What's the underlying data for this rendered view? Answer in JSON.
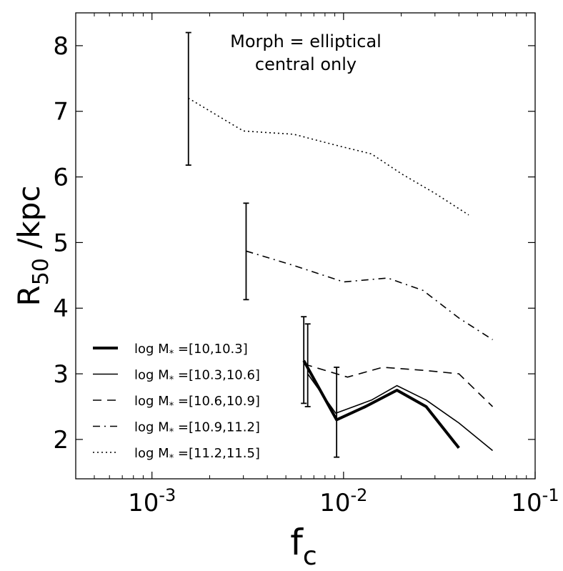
{
  "chart_data": {
    "type": "line",
    "xscale": "log",
    "xlim": [
      0.0004,
      0.1
    ],
    "ylim": [
      1.4,
      8.5
    ],
    "x_ticks": [
      {
        "value": 0.001,
        "base": "10",
        "exp": "-3"
      },
      {
        "value": 0.01,
        "base": "10",
        "exp": "-2"
      },
      {
        "value": 0.1,
        "base": "10",
        "exp": "-1"
      }
    ],
    "y_ticks": [
      2,
      3,
      4,
      5,
      6,
      7,
      8
    ],
    "y_tick_labels": [
      "2",
      "3",
      "4",
      "5",
      "6",
      "7",
      "8"
    ],
    "xlabel": {
      "main": "f",
      "sub": "c"
    },
    "ylabel": {
      "main": "R",
      "sub": "50",
      "suffix": " /kpc"
    },
    "annotation": [
      "Morph = elliptical",
      "central only"
    ],
    "legend_position": "lower-left",
    "series": [
      {
        "name": "log M* =[10,10.3]",
        "label_parts": {
          "pre": "log M",
          "sub": "*",
          "post": " =[10,10.3]"
        },
        "style": "thick",
        "x": [
          0.0062,
          0.0092,
          0.013,
          0.019,
          0.027,
          0.04
        ],
        "y": [
          3.2,
          2.3,
          2.5,
          2.75,
          2.5,
          1.87
        ],
        "error": {
          "x": 0.0062,
          "low": 2.55,
          "high": 3.87
        }
      },
      {
        "name": "log M* =[10.3,10.6]",
        "label_parts": {
          "pre": "log M",
          "sub": "*",
          "post": " =[10.3,10.6]"
        },
        "style": "solid",
        "x": [
          0.0065,
          0.0091,
          0.014,
          0.019,
          0.027,
          0.04,
          0.06
        ],
        "y": [
          3.0,
          2.4,
          2.6,
          2.82,
          2.6,
          2.25,
          1.83
        ],
        "error": {
          "x": 0.0065,
          "low": 2.5,
          "high": 3.76
        }
      },
      {
        "name": "log M* =[10.6,10.9]",
        "label_parts": {
          "pre": "log M",
          "sub": "*",
          "post": " =[10.6,10.9]"
        },
        "style": "dashed",
        "x": [
          0.0062,
          0.0105,
          0.016,
          0.027,
          0.04,
          0.06
        ],
        "y": [
          3.15,
          2.95,
          3.1,
          3.05,
          3.0,
          2.5
        ],
        "error": {
          "x": 0.0092,
          "low": 1.73,
          "high": 3.1
        }
      },
      {
        "name": "log M* =[10.9,11.2]",
        "label_parts": {
          "pre": "log M",
          "sub": "*",
          "post": " =[10.9,11.2]"
        },
        "style": "dashdot",
        "x": [
          0.0031,
          0.0055,
          0.01,
          0.017,
          0.026,
          0.04,
          0.06
        ],
        "y": [
          4.87,
          4.65,
          4.4,
          4.46,
          4.27,
          3.85,
          3.52
        ],
        "error": {
          "x": 0.0031,
          "low": 4.13,
          "high": 5.6
        }
      },
      {
        "name": "log M* =[11.2,11.5]",
        "label_parts": {
          "pre": "log M",
          "sub": "*",
          "post": " =[11.2,11.5]"
        },
        "style": "dotted",
        "x": [
          0.00155,
          0.003,
          0.0055,
          0.0095,
          0.014,
          0.02,
          0.03,
          0.045
        ],
        "y": [
          7.2,
          6.7,
          6.65,
          6.47,
          6.35,
          6.05,
          5.75,
          5.42
        ],
        "error": {
          "x": 0.00155,
          "low": 6.18,
          "high": 8.2
        }
      }
    ]
  }
}
